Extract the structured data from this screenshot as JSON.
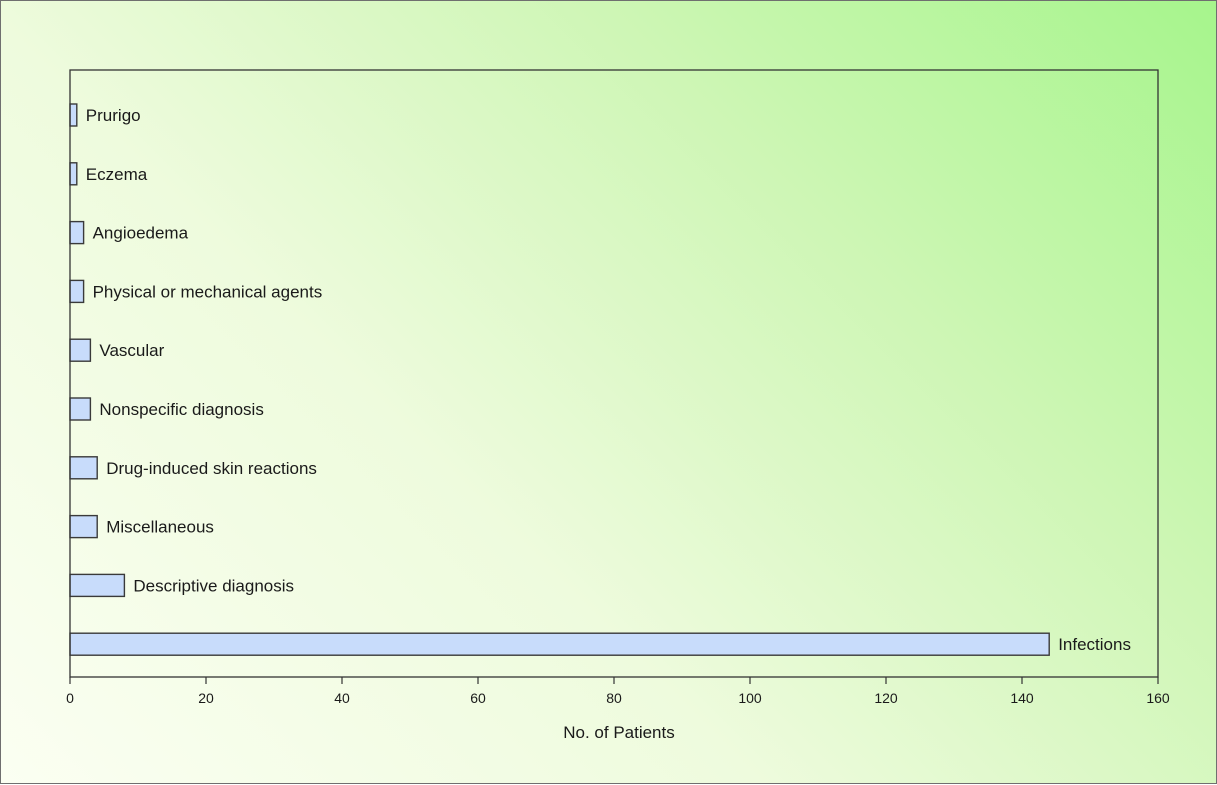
{
  "chart_data": {
    "type": "bar",
    "orientation": "horizontal",
    "title": "",
    "xlabel": "No. of Patients",
    "ylabel": "",
    "xlim": [
      0,
      160
    ],
    "x_ticks": [
      0,
      20,
      40,
      60,
      80,
      100,
      120,
      140,
      160
    ],
    "categories": [
      "Prurigo",
      "Eczema",
      "Angioedema",
      "Physical or mechanical agents",
      "Vascular",
      "Nonspecific diagnosis",
      "Drug-induced skin reactions",
      "Miscellaneous",
      "Descriptive diagnosis",
      "Infections"
    ],
    "values": [
      1,
      1,
      2,
      2,
      3,
      3,
      4,
      4,
      8,
      144
    ],
    "grid": false,
    "legend": "none",
    "bar_fill": "#c8dcfb",
    "bar_stroke": "#3a3a3a"
  }
}
